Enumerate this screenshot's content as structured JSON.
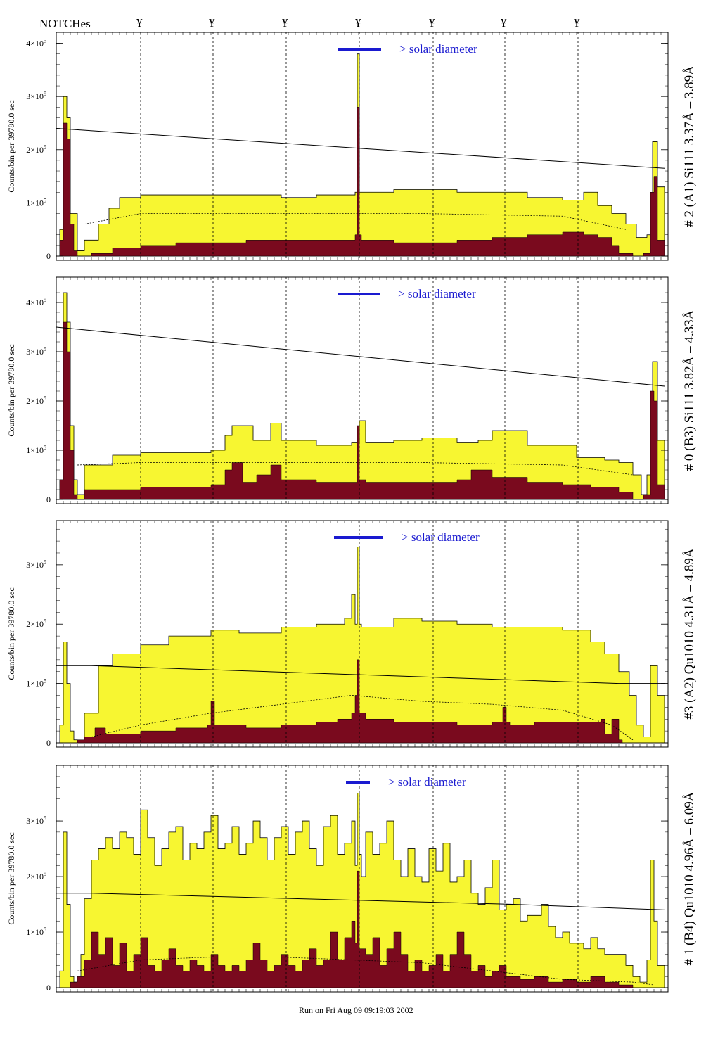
{
  "notches": {
    "title": "NOTCHes",
    "marker": "¥",
    "positions": [
      200,
      303,
      407,
      511,
      616,
      718,
      822
    ]
  },
  "solar_label": "> solar diameter",
  "footer": "Run on Fri Aug 09 09:19:03 2002",
  "colors": {
    "fill": "#f7f631",
    "dark": "#7a0a1e",
    "accent": "#1a1ad0"
  },
  "chart_data": [
    {
      "type": "area",
      "panel": "# 2 (A1) Si111  3.37Å – 3.89Å",
      "ylabel": "Counts/bin per  39780.0 sec",
      "xlim": [
        80,
        950
      ],
      "ylim": [
        0,
        4.1
      ],
      "yticks": [
        {
          "v": 0,
          "label": "0"
        },
        {
          "v": 1,
          "label": "1×10"
        },
        {
          "v": 2,
          "label": "2×10"
        },
        {
          "v": 3,
          "label": "3×10"
        },
        {
          "v": 4,
          "label": "4×10"
        }
      ],
      "tick_exp": "5",
      "solar_bar": [
        480,
        542
      ],
      "series": [
        {
          "role": "total",
          "x": [
            80,
            85,
            90,
            95,
            100,
            110,
            120,
            140,
            155,
            170,
            200,
            250,
            300,
            350,
            400,
            450,
            500,
            505,
            508,
            511,
            514,
            520,
            560,
            600,
            650,
            700,
            750,
            800,
            830,
            850,
            870,
            890,
            905,
            920,
            928,
            935,
            945,
            950
          ],
          "y": [
            0,
            0.5,
            3.0,
            2.6,
            0.8,
            0.1,
            0.3,
            0.6,
            0.9,
            1.1,
            1.15,
            1.15,
            1.15,
            1.15,
            1.1,
            1.15,
            1.15,
            1.2,
            3.8,
            1.2,
            1.2,
            1.2,
            1.25,
            1.25,
            1.2,
            1.2,
            1.1,
            1.05,
            1.2,
            0.95,
            0.8,
            0.6,
            0.35,
            0.4,
            2.15,
            1.3,
            0,
            0
          ]
        },
        {
          "role": "inner",
          "x": [
            80,
            85,
            90,
            95,
            100,
            105,
            110,
            130,
            160,
            200,
            250,
            300,
            350,
            400,
            450,
            500,
            505,
            508,
            511,
            514,
            520,
            560,
            600,
            650,
            700,
            750,
            800,
            830,
            850,
            870,
            880,
            900,
            915,
            925,
            930,
            935,
            945,
            950
          ],
          "y": [
            0,
            0.3,
            2.5,
            2.2,
            0.6,
            0.1,
            0,
            0.05,
            0.15,
            0.2,
            0.25,
            0.25,
            0.3,
            0.3,
            0.3,
            0.3,
            0.4,
            2.8,
            0.4,
            0.3,
            0.3,
            0.25,
            0.25,
            0.3,
            0.35,
            0.4,
            0.45,
            0.4,
            0.35,
            0.2,
            0.05,
            0,
            0.05,
            1.2,
            1.5,
            0.3,
            0,
            0
          ]
        },
        {
          "role": "fit",
          "x": [
            80,
            945
          ],
          "y": [
            2.4,
            1.65
          ]
        },
        {
          "role": "dashed",
          "x": [
            120,
            200,
            400,
            600,
            800,
            890
          ],
          "y": [
            0.6,
            0.8,
            0.8,
            0.8,
            0.75,
            0.5
          ]
        }
      ]
    },
    {
      "type": "area",
      "panel": "# 0 (B3) Si111  3.82Å – 4.33Å",
      "ylabel": "Counts/bin per  39780.0 sec",
      "xlim": [
        80,
        950
      ],
      "ylim": [
        0,
        4.4
      ],
      "yticks": [
        {
          "v": 0,
          "label": "0"
        },
        {
          "v": 1,
          "label": "1×10"
        },
        {
          "v": 2,
          "label": "2×10"
        },
        {
          "v": 3,
          "label": "3×10"
        },
        {
          "v": 4,
          "label": "4×10"
        }
      ],
      "tick_exp": "5",
      "solar_bar": [
        480,
        540
      ],
      "series": [
        {
          "role": "total",
          "x": [
            80,
            85,
            90,
            95,
            100,
            105,
            110,
            120,
            160,
            200,
            250,
            300,
            320,
            330,
            360,
            385,
            400,
            450,
            500,
            511,
            520,
            560,
            600,
            650,
            680,
            700,
            750,
            800,
            820,
            860,
            880,
            900,
            912,
            920,
            928,
            935,
            945,
            950
          ],
          "y": [
            0,
            0.4,
            4.2,
            3.6,
            1.5,
            0.4,
            0.1,
            0.7,
            0.9,
            0.95,
            0.95,
            1.0,
            1.3,
            1.5,
            1.2,
            1.55,
            1.2,
            1.1,
            1.15,
            1.6,
            1.15,
            1.2,
            1.25,
            1.15,
            1.2,
            1.4,
            1.1,
            1.1,
            0.85,
            0.8,
            0.75,
            0.5,
            0.1,
            0.5,
            2.8,
            1.2,
            0,
            0
          ]
        },
        {
          "role": "inner",
          "x": [
            80,
            85,
            90,
            95,
            100,
            105,
            110,
            120,
            200,
            280,
            300,
            320,
            330,
            345,
            365,
            385,
            400,
            450,
            505,
            508,
            511,
            520,
            600,
            650,
            670,
            700,
            750,
            800,
            840,
            880,
            900,
            915,
            925,
            930,
            935,
            945,
            950
          ],
          "y": [
            0,
            0.4,
            3.6,
            3.0,
            1.0,
            0.1,
            0,
            0.2,
            0.25,
            0.25,
            0.3,
            0.6,
            0.75,
            0.35,
            0.5,
            0.7,
            0.4,
            0.35,
            0.35,
            1.5,
            0.4,
            0.35,
            0.35,
            0.4,
            0.6,
            0.45,
            0.35,
            0.3,
            0.25,
            0.15,
            0,
            0.1,
            2.2,
            2.0,
            0.3,
            0,
            0
          ]
        },
        {
          "role": "fit",
          "x": [
            80,
            945
          ],
          "y": [
            3.5,
            2.3
          ]
        },
        {
          "role": "dashed",
          "x": [
            110,
            200,
            400,
            600,
            800,
            900
          ],
          "y": [
            0.7,
            0.75,
            0.75,
            0.75,
            0.7,
            0.5
          ]
        }
      ]
    },
    {
      "type": "area",
      "panel": "#3 (A2) Qu1010  4.31Å – 4.89Å",
      "ylabel": "Counts/bin per  39780.0 sec",
      "xlim": [
        80,
        950
      ],
      "ylim": [
        0,
        3.65
      ],
      "yticks": [
        {
          "v": 0,
          "label": "0"
        },
        {
          "v": 1,
          "label": "1×10"
        },
        {
          "v": 2,
          "label": "2×10"
        },
        {
          "v": 3,
          "label": "3×10"
        }
      ],
      "tick_exp": "5",
      "solar_bar": [
        475,
        545
      ],
      "series": [
        {
          "role": "total",
          "x": [
            80,
            85,
            90,
            95,
            100,
            105,
            110,
            120,
            140,
            160,
            200,
            240,
            300,
            340,
            400,
            450,
            490,
            500,
            505,
            508,
            511,
            514,
            520,
            560,
            600,
            650,
            700,
            750,
            800,
            840,
            860,
            880,
            895,
            905,
            915,
            925,
            935,
            945,
            950
          ],
          "y": [
            0,
            0.3,
            1.7,
            1.0,
            0.2,
            0.05,
            0,
            0.5,
            1.3,
            1.5,
            1.65,
            1.8,
            1.9,
            1.85,
            1.95,
            2.0,
            2.1,
            2.5,
            2.0,
            3.3,
            2.0,
            1.95,
            1.95,
            2.1,
            2.05,
            2.0,
            1.95,
            1.95,
            1.9,
            1.7,
            1.5,
            1.2,
            0.8,
            0.3,
            0.1,
            1.3,
            0.8,
            0,
            0
          ]
        },
        {
          "role": "inner",
          "x": [
            80,
            100,
            110,
            120,
            135,
            150,
            200,
            250,
            295,
            300,
            305,
            350,
            400,
            450,
            480,
            500,
            505,
            508,
            511,
            520,
            560,
            600,
            650,
            700,
            715,
            720,
            725,
            760,
            800,
            830,
            855,
            860,
            870,
            880,
            885,
            920,
            950
          ],
          "y": [
            0,
            0,
            0.05,
            0.1,
            0.25,
            0.15,
            0.2,
            0.25,
            0.3,
            0.7,
            0.3,
            0.25,
            0.3,
            0.35,
            0.4,
            0.5,
            0.8,
            1.4,
            0.5,
            0.4,
            0.35,
            0.35,
            0.3,
            0.35,
            0.6,
            0.35,
            0.3,
            0.35,
            0.35,
            0.35,
            0.4,
            0.15,
            0.4,
            0.05,
            0,
            0,
            0
          ]
        },
        {
          "role": "fit",
          "x": [
            80,
            130,
            880,
            945
          ],
          "y": [
            1.3,
            1.3,
            1.0,
            1.0
          ]
        },
        {
          "role": "dashed",
          "x": [
            130,
            200,
            300,
            400,
            500,
            600,
            700,
            800,
            870,
            900
          ],
          "y": [
            0.1,
            0.3,
            0.5,
            0.65,
            0.8,
            0.7,
            0.65,
            0.55,
            0.3,
            0.05
          ]
        }
      ]
    },
    {
      "type": "area",
      "panel": "# 1 (B4) Qu1010 4.96Å – 6.09Å",
      "ylabel": "Counts/bin per  39780.0 sec",
      "xlim": [
        80,
        950
      ],
      "ylim": [
        0,
        3.9
      ],
      "yticks": [
        {
          "v": 0,
          "label": "0"
        },
        {
          "v": 1,
          "label": "1×10"
        },
        {
          "v": 2,
          "label": "2×10"
        },
        {
          "v": 3,
          "label": "3×10"
        }
      ],
      "tick_exp": "5",
      "solar_bar": [
        492,
        526
      ],
      "series": [
        {
          "role": "total",
          "x": [
            80,
            85,
            90,
            95,
            100,
            105,
            110,
            115,
            120,
            130,
            140,
            150,
            160,
            170,
            180,
            190,
            200,
            210,
            220,
            230,
            240,
            250,
            260,
            270,
            280,
            290,
            300,
            310,
            320,
            330,
            340,
            350,
            360,
            370,
            380,
            390,
            400,
            410,
            420,
            430,
            440,
            450,
            460,
            470,
            480,
            490,
            500,
            505,
            508,
            511,
            514,
            520,
            530,
            540,
            550,
            560,
            570,
            580,
            590,
            600,
            610,
            620,
            630,
            640,
            650,
            660,
            670,
            680,
            690,
            700,
            710,
            720,
            730,
            740,
            750,
            760,
            770,
            780,
            790,
            800,
            810,
            820,
            830,
            840,
            850,
            860,
            870,
            880,
            890,
            900,
            910,
            920,
            925,
            930,
            935,
            945,
            950
          ],
          "y": [
            0,
            0.3,
            2.8,
            1.5,
            0.2,
            0.1,
            0.05,
            0.6,
            1.6,
            2.3,
            2.5,
            2.7,
            2.5,
            2.8,
            2.7,
            2.4,
            3.2,
            2.7,
            2.2,
            2.5,
            2.8,
            2.9,
            2.3,
            2.6,
            2.5,
            2.8,
            3.1,
            2.5,
            2.6,
            2.9,
            2.4,
            2.6,
            3.0,
            2.7,
            2.3,
            2.7,
            2.9,
            2.4,
            2.8,
            3.0,
            2.5,
            2.2,
            2.9,
            3.1,
            2.4,
            2.6,
            3.0,
            2.2,
            3.5,
            2.4,
            2.0,
            2.8,
            2.4,
            2.6,
            3.0,
            2.3,
            2.0,
            2.5,
            2.0,
            1.9,
            2.5,
            2.1,
            2.6,
            1.9,
            2.0,
            2.3,
            1.7,
            1.5,
            1.8,
            2.3,
            1.4,
            1.5,
            1.6,
            1.2,
            1.3,
            1.3,
            1.5,
            1.1,
            0.9,
            1.0,
            0.8,
            0.8,
            0.7,
            0.9,
            0.7,
            0.6,
            0.6,
            0.6,
            0.4,
            0.2,
            0.1,
            0.5,
            2.3,
            1.2,
            0.4,
            0,
            0
          ]
        },
        {
          "role": "inner",
          "x": [
            80,
            95,
            100,
            110,
            120,
            130,
            140,
            150,
            160,
            170,
            180,
            190,
            200,
            210,
            220,
            230,
            240,
            250,
            260,
            270,
            280,
            290,
            300,
            310,
            320,
            330,
            340,
            350,
            360,
            370,
            380,
            390,
            400,
            410,
            420,
            430,
            440,
            450,
            460,
            470,
            480,
            490,
            500,
            505,
            508,
            511,
            520,
            530,
            540,
            550,
            560,
            570,
            580,
            590,
            600,
            610,
            620,
            630,
            640,
            650,
            660,
            670,
            680,
            690,
            700,
            710,
            720,
            740,
            760,
            780,
            800,
            820,
            840,
            860,
            880,
            900,
            920,
            930,
            940,
            950
          ],
          "y": [
            0,
            0,
            0.1,
            0.2,
            0.5,
            1.0,
            0.6,
            0.9,
            0.4,
            0.8,
            0.3,
            0.6,
            0.9,
            0.4,
            0.3,
            0.5,
            0.7,
            0.4,
            0.3,
            0.5,
            0.4,
            0.3,
            0.6,
            0.4,
            0.3,
            0.4,
            0.3,
            0.5,
            0.8,
            0.5,
            0.3,
            0.4,
            0.6,
            0.4,
            0.3,
            0.5,
            0.7,
            0.4,
            0.5,
            1.0,
            0.5,
            0.9,
            1.2,
            0.8,
            2.1,
            0.7,
            0.6,
            0.9,
            0.4,
            0.7,
            1.0,
            0.6,
            0.3,
            0.5,
            0.3,
            0.4,
            0.6,
            0.3,
            0.6,
            1.0,
            0.6,
            0.3,
            0.4,
            0.2,
            0.3,
            0.4,
            0.2,
            0.15,
            0.2,
            0.1,
            0.15,
            0.1,
            0.2,
            0.1,
            0.05,
            0,
            0,
            0,
            0,
            0
          ]
        },
        {
          "role": "fit",
          "x": [
            80,
            130,
            730,
            945
          ],
          "y": [
            1.7,
            1.7,
            1.5,
            1.4
          ]
        },
        {
          "role": "dashed",
          "x": [
            110,
            200,
            300,
            400,
            500,
            600,
            700,
            800,
            900,
            930
          ],
          "y": [
            0.3,
            0.5,
            0.55,
            0.55,
            0.5,
            0.45,
            0.3,
            0.15,
            0.1,
            0.05
          ]
        }
      ]
    }
  ]
}
